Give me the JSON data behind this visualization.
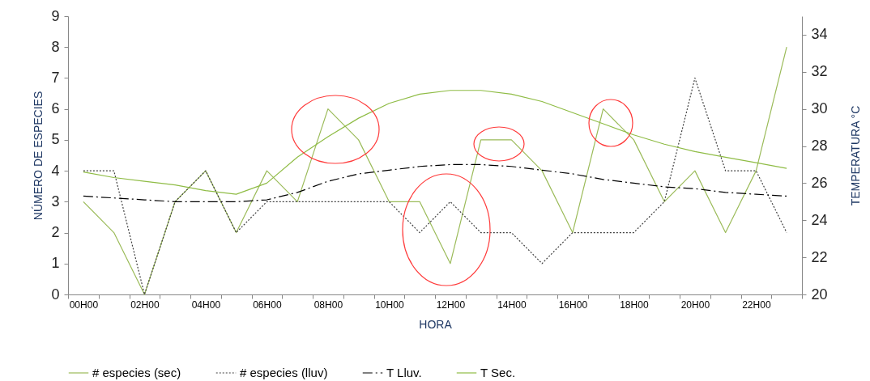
{
  "chart_data": {
    "type": "line",
    "categories": [
      "00H00",
      null,
      "02H00",
      null,
      "04H00",
      null,
      "06H00",
      null,
      "08H00",
      null,
      "10H00",
      null,
      "12H00",
      null,
      "14H00",
      null,
      "16H00",
      null,
      "18H00",
      null,
      "20H00",
      null,
      "22H00",
      null
    ],
    "xlabel": "HORA",
    "ylabel": "NÚMERO DE ESPECIES",
    "y2label": "TEMPERATURA °C",
    "ylim": [
      0,
      9
    ],
    "yticks": [
      0,
      1,
      2,
      3,
      4,
      5,
      6,
      7,
      8,
      9
    ],
    "y2lim": [
      20,
      35
    ],
    "y2ticks": [
      20,
      22,
      24,
      26,
      28,
      30,
      32,
      34
    ],
    "grid": false,
    "legend": "bottom",
    "marker": "none",
    "series": [
      {
        "name": "# especies (sec)",
        "color": "#9bbb59",
        "line_style": "solid",
        "values": [
          3,
          2,
          0,
          3,
          4,
          2,
          4,
          3,
          6,
          5,
          3,
          3,
          1,
          5,
          5,
          4,
          2,
          6,
          5,
          3,
          4,
          2,
          4,
          8
        ]
      },
      {
        "name": "# especies (lluv)",
        "color": "#404040",
        "line_style": "dotted",
        "values": [
          4,
          4,
          0,
          3,
          4,
          2,
          3,
          3,
          3,
          3,
          3,
          2,
          3,
          2,
          2,
          1,
          2,
          2,
          2,
          3,
          7,
          4,
          4,
          2
        ]
      },
      {
        "name": "T Lluv.",
        "color": "#000000",
        "line_style": "dashed",
        "axis": "y2",
        "values": [
          25.3,
          25.2,
          25.1,
          25.0,
          25.0,
          25.0,
          25.1,
          25.5,
          26.1,
          26.5,
          26.7,
          26.9,
          27.0,
          27.0,
          26.9,
          26.7,
          26.5,
          26.2,
          26.0,
          25.8,
          25.7,
          25.5,
          25.4,
          25.3
        ]
      },
      {
        "name": "T Sec.",
        "color": "#8fbc45",
        "line_style": "solid",
        "axis": "y2",
        "values": [
          26.6,
          26.3,
          26.1,
          25.9,
          25.6,
          25.4,
          26.0,
          27.4,
          28.5,
          29.5,
          30.3,
          30.8,
          31.0,
          31.0,
          30.8,
          30.4,
          29.8,
          29.2,
          28.6,
          28.1,
          27.7,
          27.4,
          27.1,
          26.8
        ]
      }
    ]
  }
}
